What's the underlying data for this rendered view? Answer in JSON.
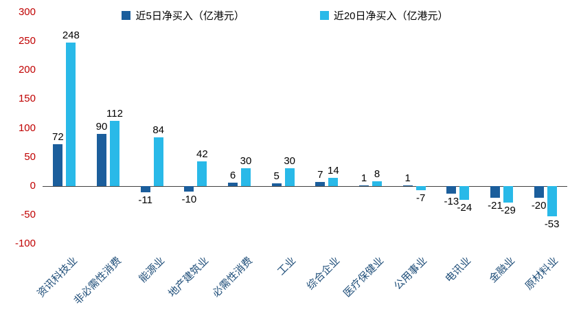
{
  "chart_data": {
    "type": "bar",
    "title": "",
    "xlabel": "",
    "ylabel": "",
    "categories": [
      "资讯科技业",
      "非必需性消费",
      "能源业",
      "地产建筑业",
      "必需性消费",
      "工业",
      "综合企业",
      "医疗保健业",
      "公用事业",
      "电讯业",
      "金融业",
      "原材料业"
    ],
    "series": [
      {
        "name": "近5日净买入（亿港元）",
        "color": "#1b5e9c",
        "values": [
          72,
          90,
          -11,
          -10,
          6,
          5,
          7,
          1,
          1,
          -13,
          -21,
          -20
        ]
      },
      {
        "name": "近20日净买入（亿港元）",
        "color": "#29b9e8",
        "values": [
          248,
          112,
          84,
          42,
          30,
          30,
          14,
          8,
          -7,
          -24,
          -29,
          -53
        ]
      }
    ],
    "ylim": [
      -100,
      300
    ],
    "yticks": [
      300,
      250,
      200,
      150,
      100,
      50,
      0,
      -50,
      -100
    ],
    "grid": false,
    "legend_position": "top",
    "colors": {
      "y_axis_label": "#c00000",
      "category_label": "#1f4e79",
      "value_label": "#000000",
      "zero_line": "#404040",
      "background": "#ffffff"
    }
  }
}
